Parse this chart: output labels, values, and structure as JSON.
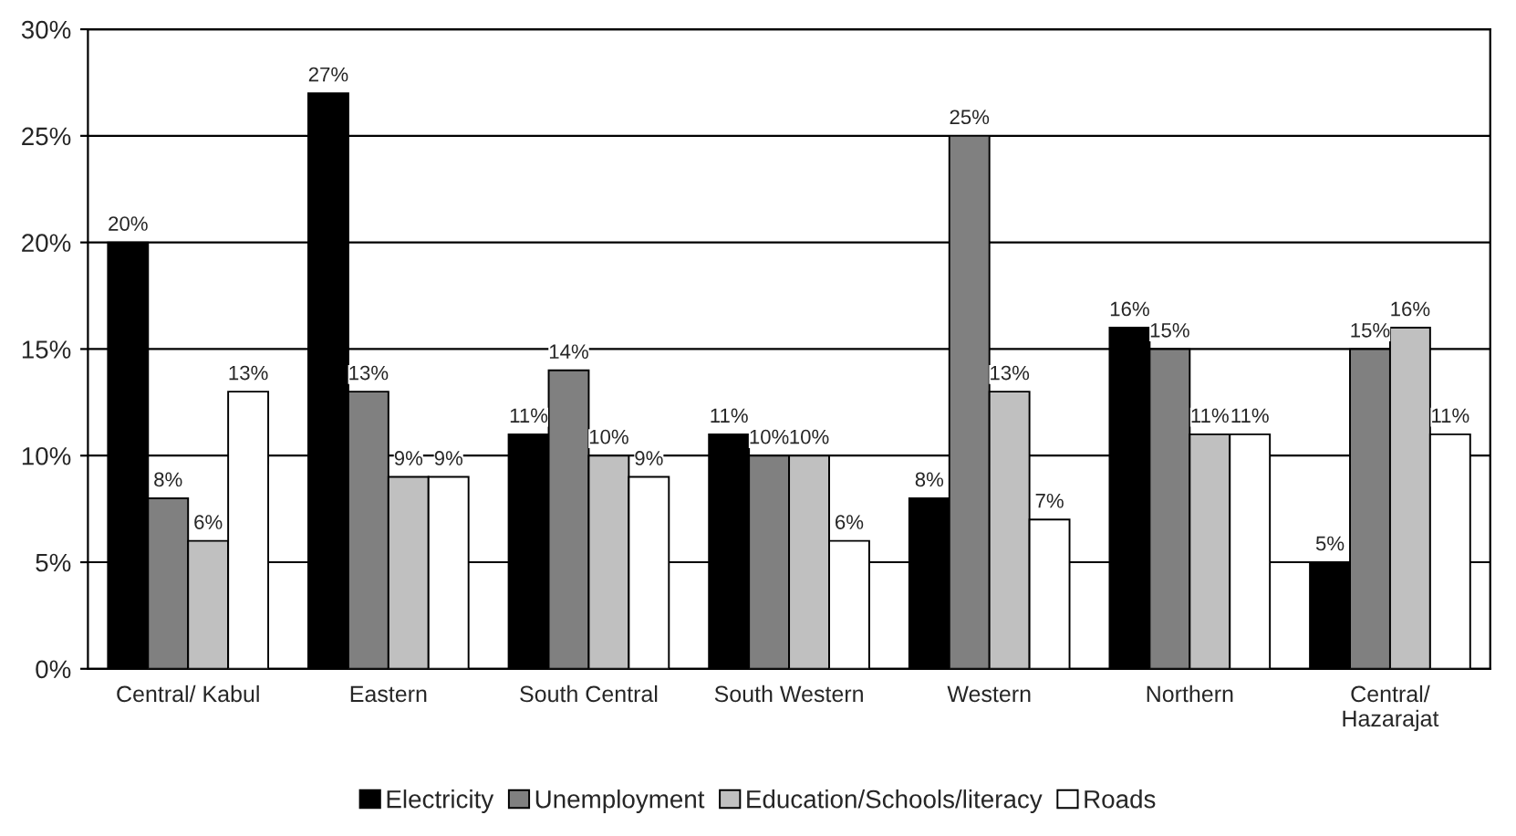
{
  "chart_data": {
    "type": "bar",
    "categories": [
      "Central/ Kabul",
      "Eastern",
      "South Central",
      "South Western",
      "Western",
      "Northern",
      "Central/\nHazarajat"
    ],
    "series": [
      {
        "name": "Electricity",
        "color": "#000000",
        "values": [
          20,
          27,
          11,
          11,
          8,
          16,
          5
        ],
        "value_labels": [
          "20%",
          "27%",
          "11%",
          "11%",
          "8%",
          "16%",
          "5%"
        ]
      },
      {
        "name": "Unemployment",
        "color": "#808080",
        "values": [
          8,
          13,
          14,
          10,
          25,
          15,
          15
        ],
        "value_labels": [
          "8%",
          "13%",
          "14%",
          "10%",
          "25%",
          "15%",
          "15%"
        ]
      },
      {
        "name": "Education/Schools/literacy",
        "color": "#c0c0c0",
        "values": [
          6,
          9,
          10,
          10,
          13,
          11,
          16
        ],
        "value_labels": [
          "6%",
          "9%",
          "10%",
          "10%",
          "13%",
          "11%",
          "16%"
        ]
      },
      {
        "name": "Roads",
        "color": "#ffffff",
        "values": [
          13,
          9,
          9,
          6,
          7,
          11,
          11
        ],
        "value_labels": [
          "13%",
          "9%",
          "9%",
          "6%",
          "7%",
          "11%",
          "11%"
        ]
      }
    ],
    "ylim": [
      0,
      30
    ],
    "yticks": [
      {
        "value": 0,
        "label": "0%"
      },
      {
        "value": 5,
        "label": "5%"
      },
      {
        "value": 10,
        "label": "10%"
      },
      {
        "value": 15,
        "label": "15%"
      },
      {
        "value": 20,
        "label": "20%"
      },
      {
        "value": 25,
        "label": "25%"
      },
      {
        "value": 30,
        "label": "30%"
      }
    ],
    "grid": "y",
    "legend": "bottom"
  }
}
